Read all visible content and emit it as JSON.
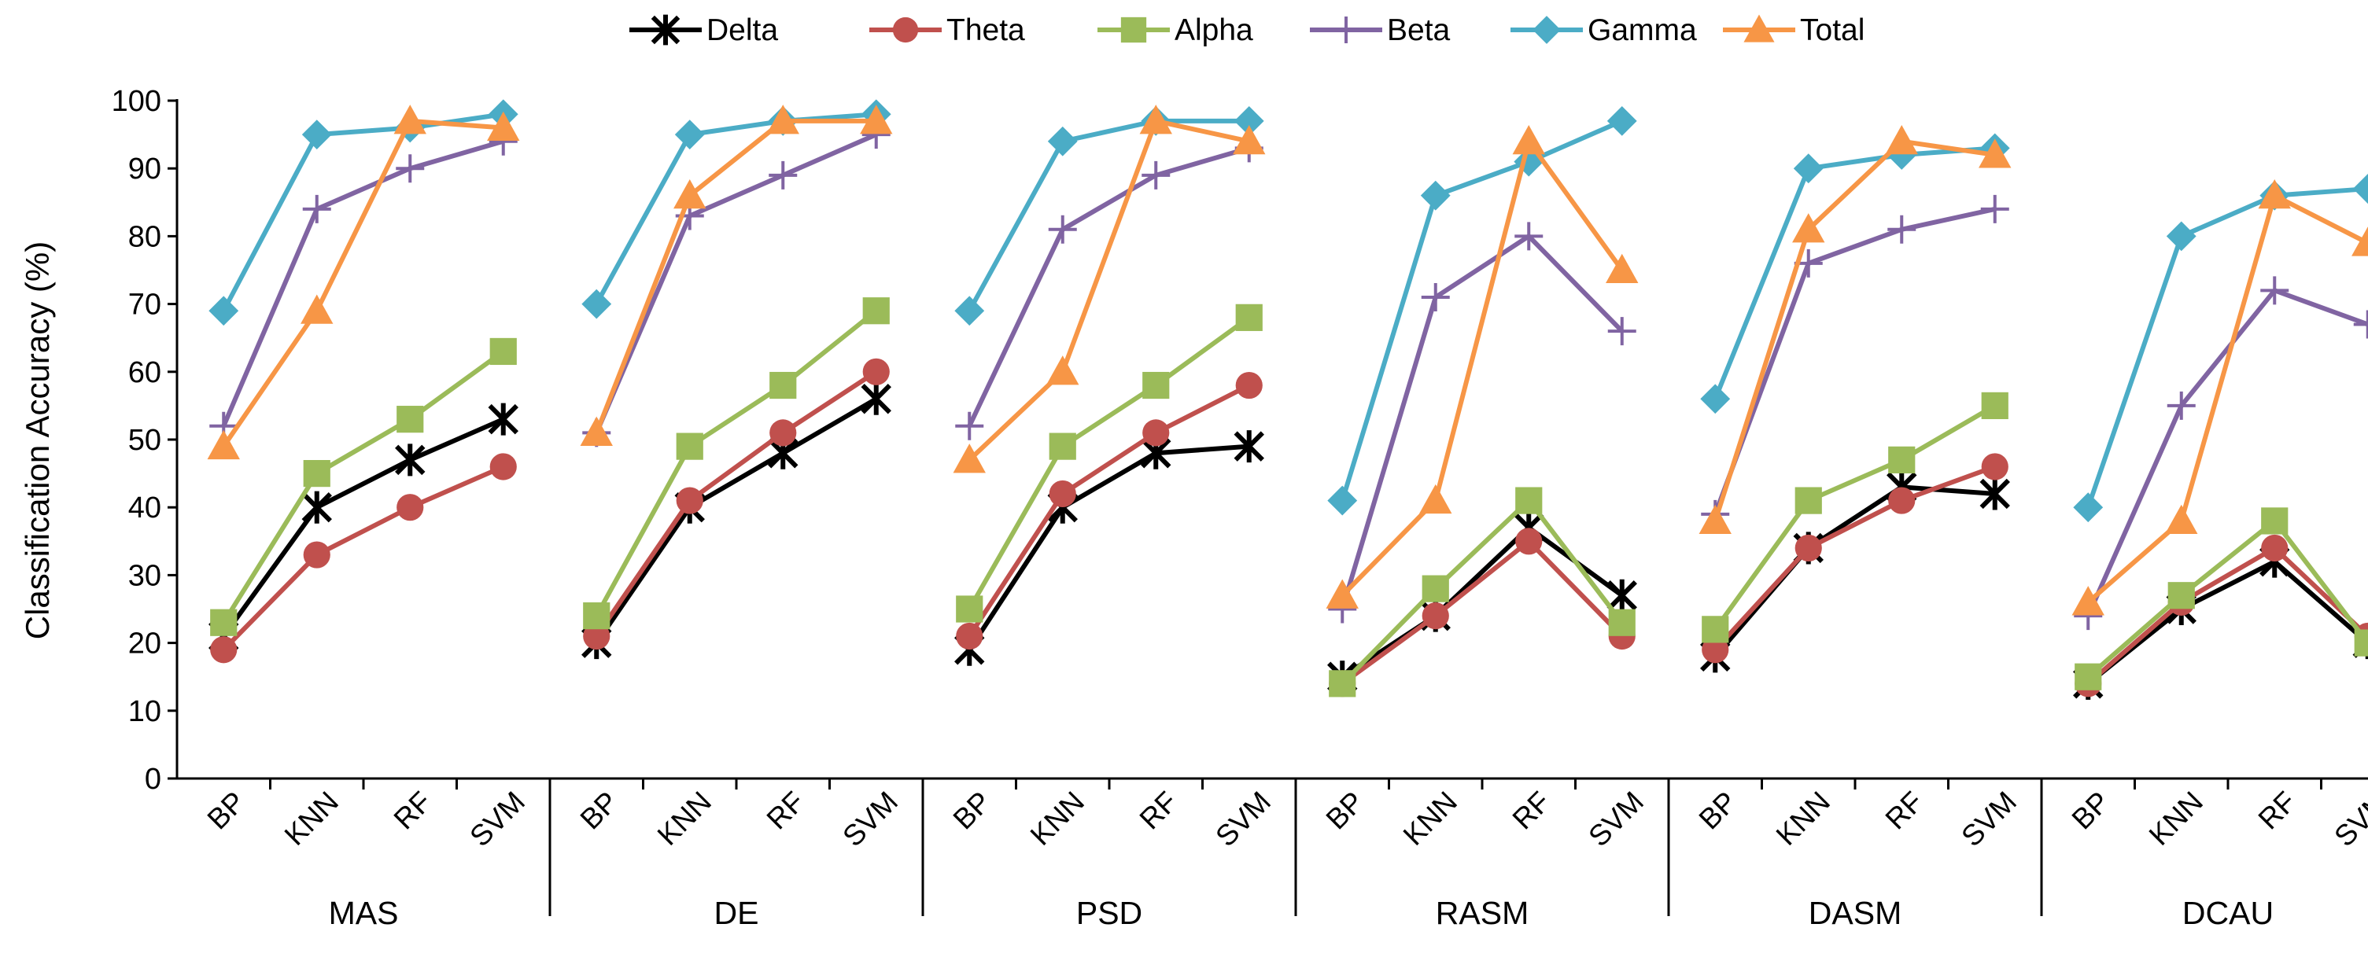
{
  "chart_data": {
    "type": "line",
    "title": "",
    "ylabel": "Classification  Accuracy  (%)",
    "ylim": [
      0,
      100
    ],
    "yticks": [
      0,
      10,
      20,
      30,
      40,
      50,
      60,
      70,
      80,
      90,
      100
    ],
    "grid": false,
    "legend_position": "top",
    "groups": [
      "MAS",
      "DE",
      "PSD",
      "RASM",
      "DASM",
      "DCAU"
    ],
    "categories": [
      "BP",
      "KNN",
      "RF",
      "SVM"
    ],
    "series": [
      {
        "name": "Delta",
        "color": "#000000",
        "marker": "star",
        "values": [
          [
            21,
            40,
            47,
            53
          ],
          [
            20,
            40,
            48,
            56
          ],
          [
            19,
            40,
            48,
            49
          ],
          [
            15,
            24,
            37,
            27
          ],
          [
            18,
            34,
            43,
            42
          ],
          [
            14,
            25,
            32,
            20
          ]
        ]
      },
      {
        "name": "Theta",
        "color": "#c0504d",
        "marker": "circle",
        "values": [
          [
            19,
            33,
            40,
            46
          ],
          [
            21,
            41,
            51,
            60
          ],
          [
            21,
            42,
            51,
            58
          ],
          [
            14,
            24,
            35,
            21
          ],
          [
            19,
            34,
            41,
            46
          ],
          [
            14,
            26,
            34,
            21
          ]
        ]
      },
      {
        "name": "Alpha",
        "color": "#9bbb59",
        "marker": "square",
        "values": [
          [
            23,
            45,
            53,
            63
          ],
          [
            24,
            49,
            58,
            69
          ],
          [
            25,
            49,
            58,
            68
          ],
          [
            14,
            28,
            41,
            23
          ],
          [
            22,
            41,
            47,
            55
          ],
          [
            15,
            27,
            38,
            20
          ]
        ]
      },
      {
        "name": "Beta",
        "color": "#8064a2",
        "marker": "plus",
        "values": [
          [
            52,
            84,
            90,
            94
          ],
          [
            51,
            83,
            89,
            95
          ],
          [
            52,
            81,
            89,
            93
          ],
          [
            25,
            71,
            80,
            66
          ],
          [
            39,
            76,
            81,
            84
          ],
          [
            24,
            55,
            72,
            67
          ]
        ]
      },
      {
        "name": "Gamma",
        "color": "#4bacc6",
        "marker": "diamond",
        "values": [
          [
            69,
            95,
            96,
            98
          ],
          [
            70,
            95,
            97,
            98
          ],
          [
            69,
            94,
            97,
            97
          ],
          [
            41,
            86,
            91,
            97
          ],
          [
            56,
            90,
            92,
            93
          ],
          [
            40,
            80,
            86,
            87
          ]
        ]
      },
      {
        "name": "Total",
        "color": "#f79646",
        "marker": "triangle",
        "values": [
          [
            49,
            69,
            97,
            96
          ],
          [
            51,
            86,
            97,
            97
          ],
          [
            47,
            60,
            97,
            94
          ],
          [
            27,
            41,
            94,
            75
          ],
          [
            38,
            81,
            94,
            92
          ],
          [
            26,
            38,
            86,
            79
          ]
        ]
      }
    ]
  }
}
